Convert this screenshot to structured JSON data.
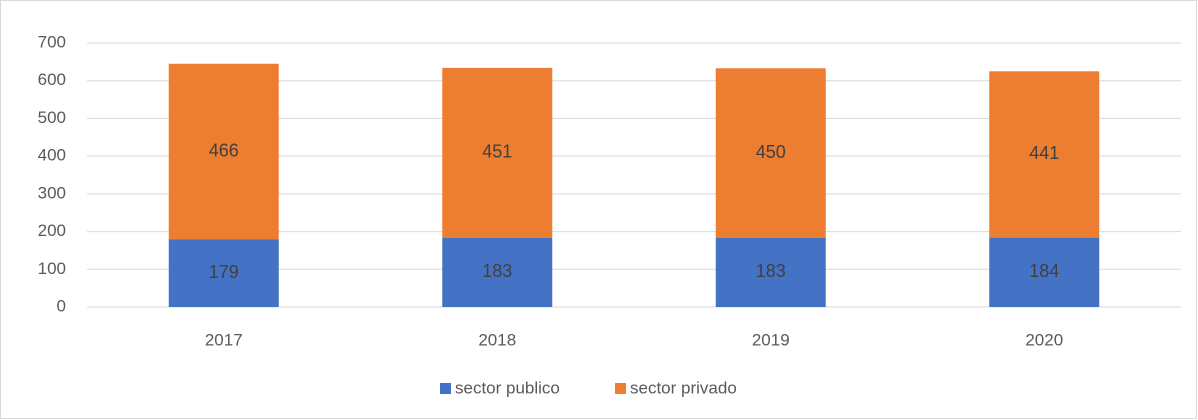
{
  "chart_data": {
    "type": "stacked_bar",
    "categories": [
      "2017",
      "2018",
      "2019",
      "2020"
    ],
    "series": [
      {
        "name": "sector publico",
        "color": "#4472c4",
        "values": [
          179,
          183,
          183,
          184
        ]
      },
      {
        "name": "sector privado",
        "color": "#ed7d31",
        "values": [
          466,
          451,
          450,
          441
        ]
      }
    ],
    "ylim": [
      0,
      700
    ],
    "yticks": [
      0,
      100,
      200,
      300,
      400,
      500,
      600,
      700
    ],
    "grid": true,
    "legend": "bottom"
  }
}
